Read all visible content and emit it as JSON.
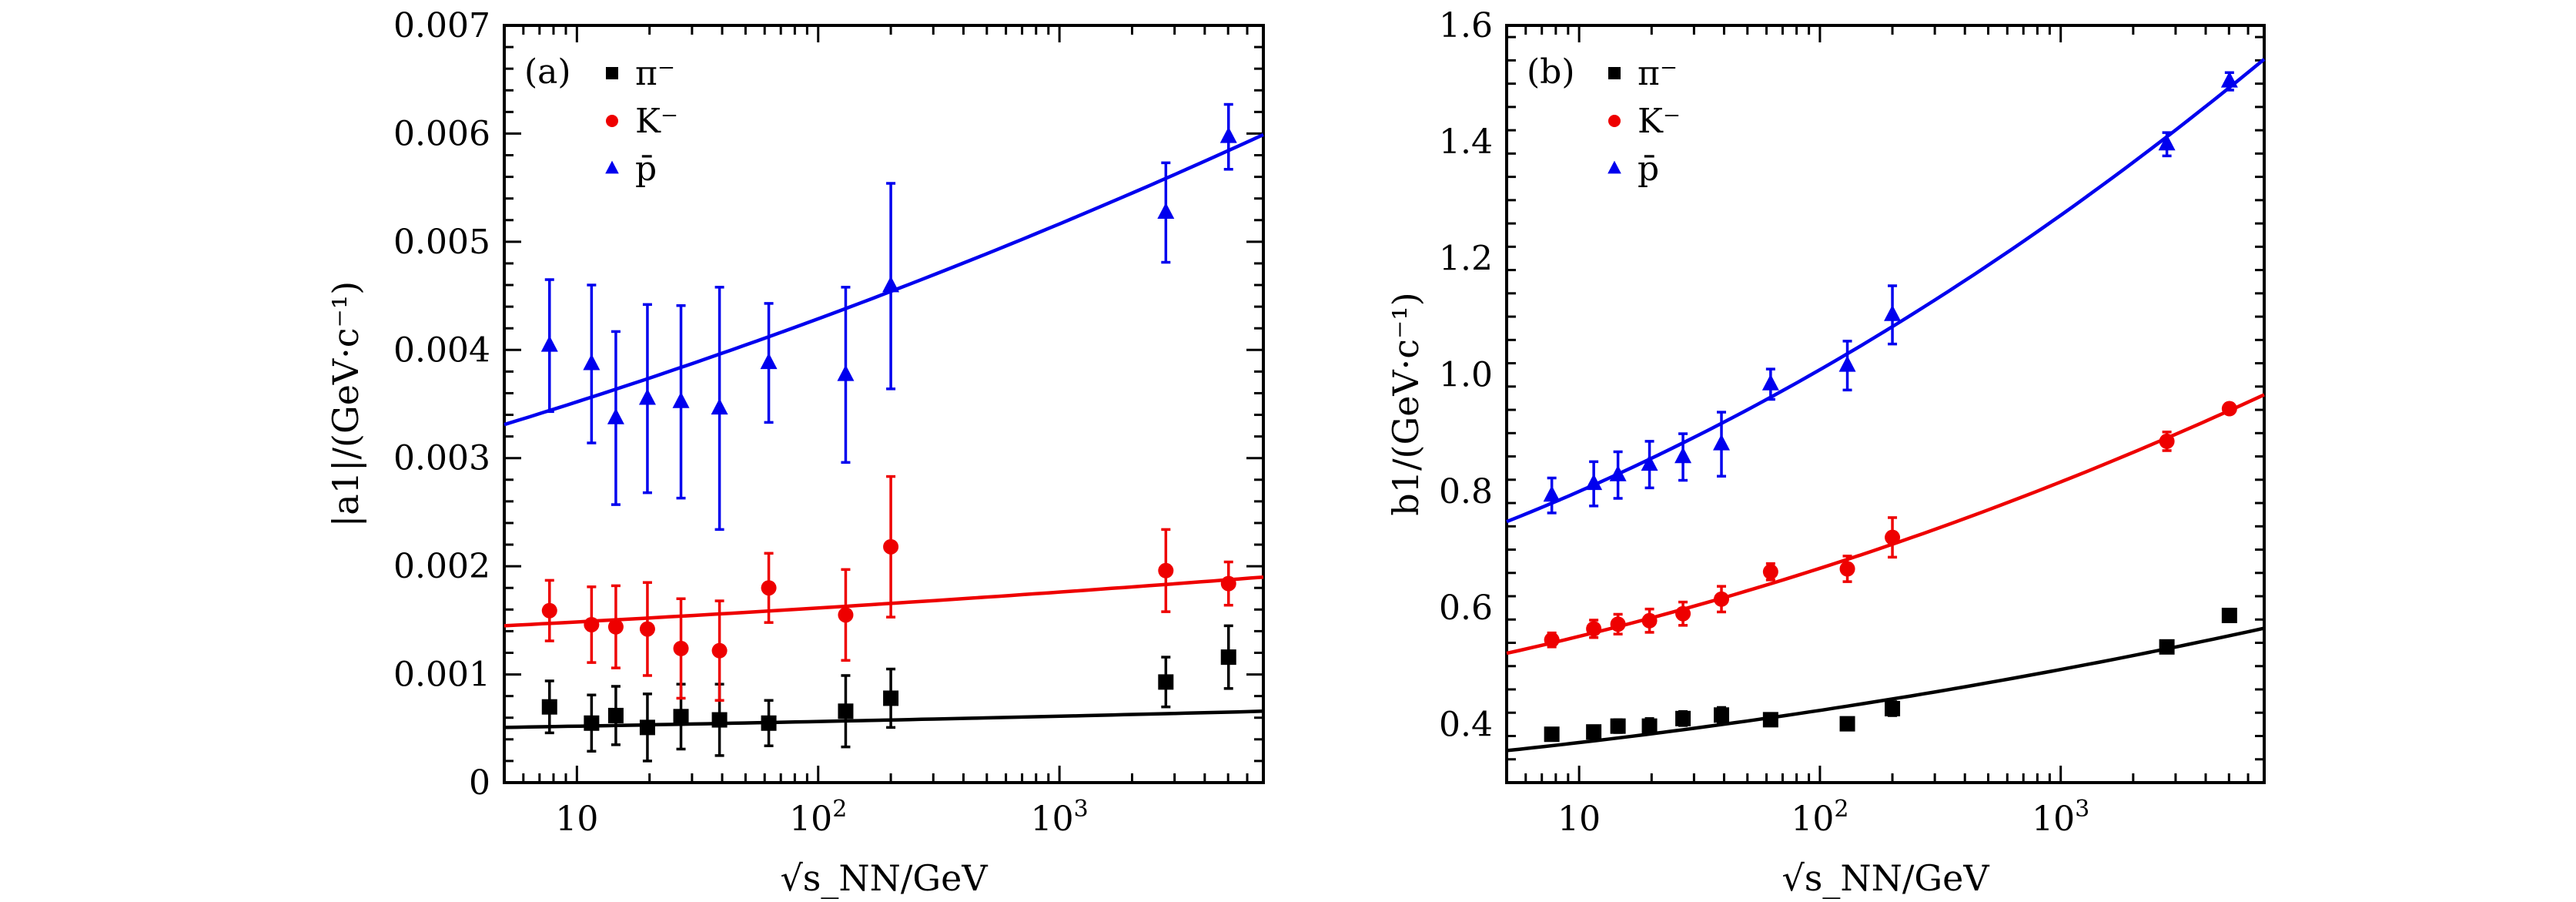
{
  "chart_data": [
    {
      "type": "scatter",
      "panel_label": "(a)",
      "title": "",
      "xlabel": "√s_NN/GeV",
      "ylabel": "|a1|/(GeV·c⁻¹)",
      "xscale": "log",
      "xlim": [
        5,
        7000
      ],
      "ylim": [
        0,
        0.007
      ],
      "xticks": [
        {
          "value": 10,
          "label": "10"
        },
        {
          "value": 100,
          "label": "10²"
        },
        {
          "value": 1000,
          "label": "10³"
        }
      ],
      "yticks": [
        {
          "value": 0,
          "label": "0"
        },
        {
          "value": 0.001,
          "label": "0.001"
        },
        {
          "value": 0.002,
          "label": "0.002"
        },
        {
          "value": 0.003,
          "label": "0.003"
        },
        {
          "value": 0.004,
          "label": "0.004"
        },
        {
          "value": 0.005,
          "label": "0.005"
        },
        {
          "value": 0.006,
          "label": "0.006"
        },
        {
          "value": 0.007,
          "label": "0.007"
        }
      ],
      "legend": "top-left",
      "x": [
        7.7,
        11.5,
        14.5,
        19.6,
        27,
        39,
        62.4,
        130,
        200,
        2760,
        5020
      ],
      "series": [
        {
          "name": "π⁻",
          "marker": "square",
          "color": "#000000",
          "values": [
            0.0007,
            0.00055,
            0.00062,
            0.00051,
            0.00061,
            0.00058,
            0.00055,
            0.00066,
            0.00078,
            0.00093,
            0.00116
          ],
          "errors": [
            0.00024,
            0.00026,
            0.00027,
            0.00031,
            0.0003,
            0.00033,
            0.00021,
            0.00033,
            0.00027,
            0.00023,
            0.00029
          ],
          "fit": [
            0.00051,
            0.00066
          ]
        },
        {
          "name": "K⁻",
          "marker": "circle",
          "color": "#ee0000",
          "values": [
            0.00159,
            0.00146,
            0.00144,
            0.00142,
            0.00124,
            0.00122,
            0.0018,
            0.00155,
            0.00218,
            0.00196,
            0.00184
          ],
          "errors": [
            0.00028,
            0.00035,
            0.00038,
            0.00043,
            0.00046,
            0.00046,
            0.00032,
            0.00042,
            0.00065,
            0.00038,
            0.0002
          ],
          "fit": [
            0.00145,
            0.0019
          ]
        },
        {
          "name": "p̄",
          "marker": "triangle",
          "color": "#0000ee",
          "values": [
            0.00404,
            0.00387,
            0.00337,
            0.00355,
            0.00352,
            0.00346,
            0.00388,
            0.00377,
            0.00459,
            0.00527,
            0.00597
          ],
          "errors": [
            0.00061,
            0.00073,
            0.0008,
            0.00087,
            0.00089,
            0.00112,
            0.00055,
            0.00081,
            0.00095,
            0.00046,
            0.0003
          ],
          "fit": [
            0.00331,
            0.00599
          ]
        }
      ]
    },
    {
      "type": "scatter",
      "panel_label": "(b)",
      "title": "",
      "xlabel": "√s_NN/GeV",
      "ylabel": "b1/(GeV·c⁻¹)",
      "xscale": "log",
      "xlim": [
        5,
        7000
      ],
      "ylim": [
        0.3,
        1.6
      ],
      "xticks": [
        {
          "value": 10,
          "label": "10"
        },
        {
          "value": 100,
          "label": "10²"
        },
        {
          "value": 1000,
          "label": "10³"
        }
      ],
      "yticks": [
        {
          "value": 0.4,
          "label": "0.4"
        },
        {
          "value": 0.6,
          "label": "0.6"
        },
        {
          "value": 0.8,
          "label": "0.8"
        },
        {
          "value": 1.0,
          "label": "1.0"
        },
        {
          "value": 1.2,
          "label": "1.2"
        },
        {
          "value": 1.4,
          "label": "1.4"
        },
        {
          "value": 1.6,
          "label": "1.6"
        }
      ],
      "legend": "top-left",
      "x": [
        7.7,
        11.5,
        14.5,
        19.6,
        27,
        39,
        62.4,
        130,
        200,
        2760,
        5020
      ],
      "series": [
        {
          "name": "π⁻",
          "marker": "square",
          "color": "#000000",
          "values": [
            0.383,
            0.387,
            0.397,
            0.397,
            0.41,
            0.416,
            0.408,
            0.401,
            0.427,
            0.533,
            0.587
          ],
          "errors": [
            0.01,
            0.01,
            0.011,
            0.013,
            0.012,
            0.013,
            0.008,
            0.007,
            0.012,
            0.01,
            0.01
          ],
          "fit": [
            0.355,
            0.565
          ]
        },
        {
          "name": "K⁻",
          "marker": "circle",
          "color": "#ee0000",
          "values": [
            0.545,
            0.564,
            0.572,
            0.578,
            0.59,
            0.615,
            0.662,
            0.667,
            0.721,
            0.886,
            0.942
          ],
          "errors": [
            0.012,
            0.015,
            0.017,
            0.02,
            0.02,
            0.022,
            0.014,
            0.022,
            0.034,
            0.016,
            0.005
          ],
          "fit": [
            0.522,
            0.966
          ]
        },
        {
          "name": "p̄",
          "marker": "triangle",
          "color": "#0000ee",
          "values": [
            0.793,
            0.813,
            0.828,
            0.846,
            0.859,
            0.881,
            0.984,
            1.016,
            1.103,
            1.396,
            1.504
          ],
          "errors": [
            0.03,
            0.038,
            0.04,
            0.04,
            0.04,
            0.055,
            0.026,
            0.042,
            0.05,
            0.02,
            0.015
          ],
          "fit": [
            0.748,
            1.542
          ]
        }
      ]
    }
  ]
}
